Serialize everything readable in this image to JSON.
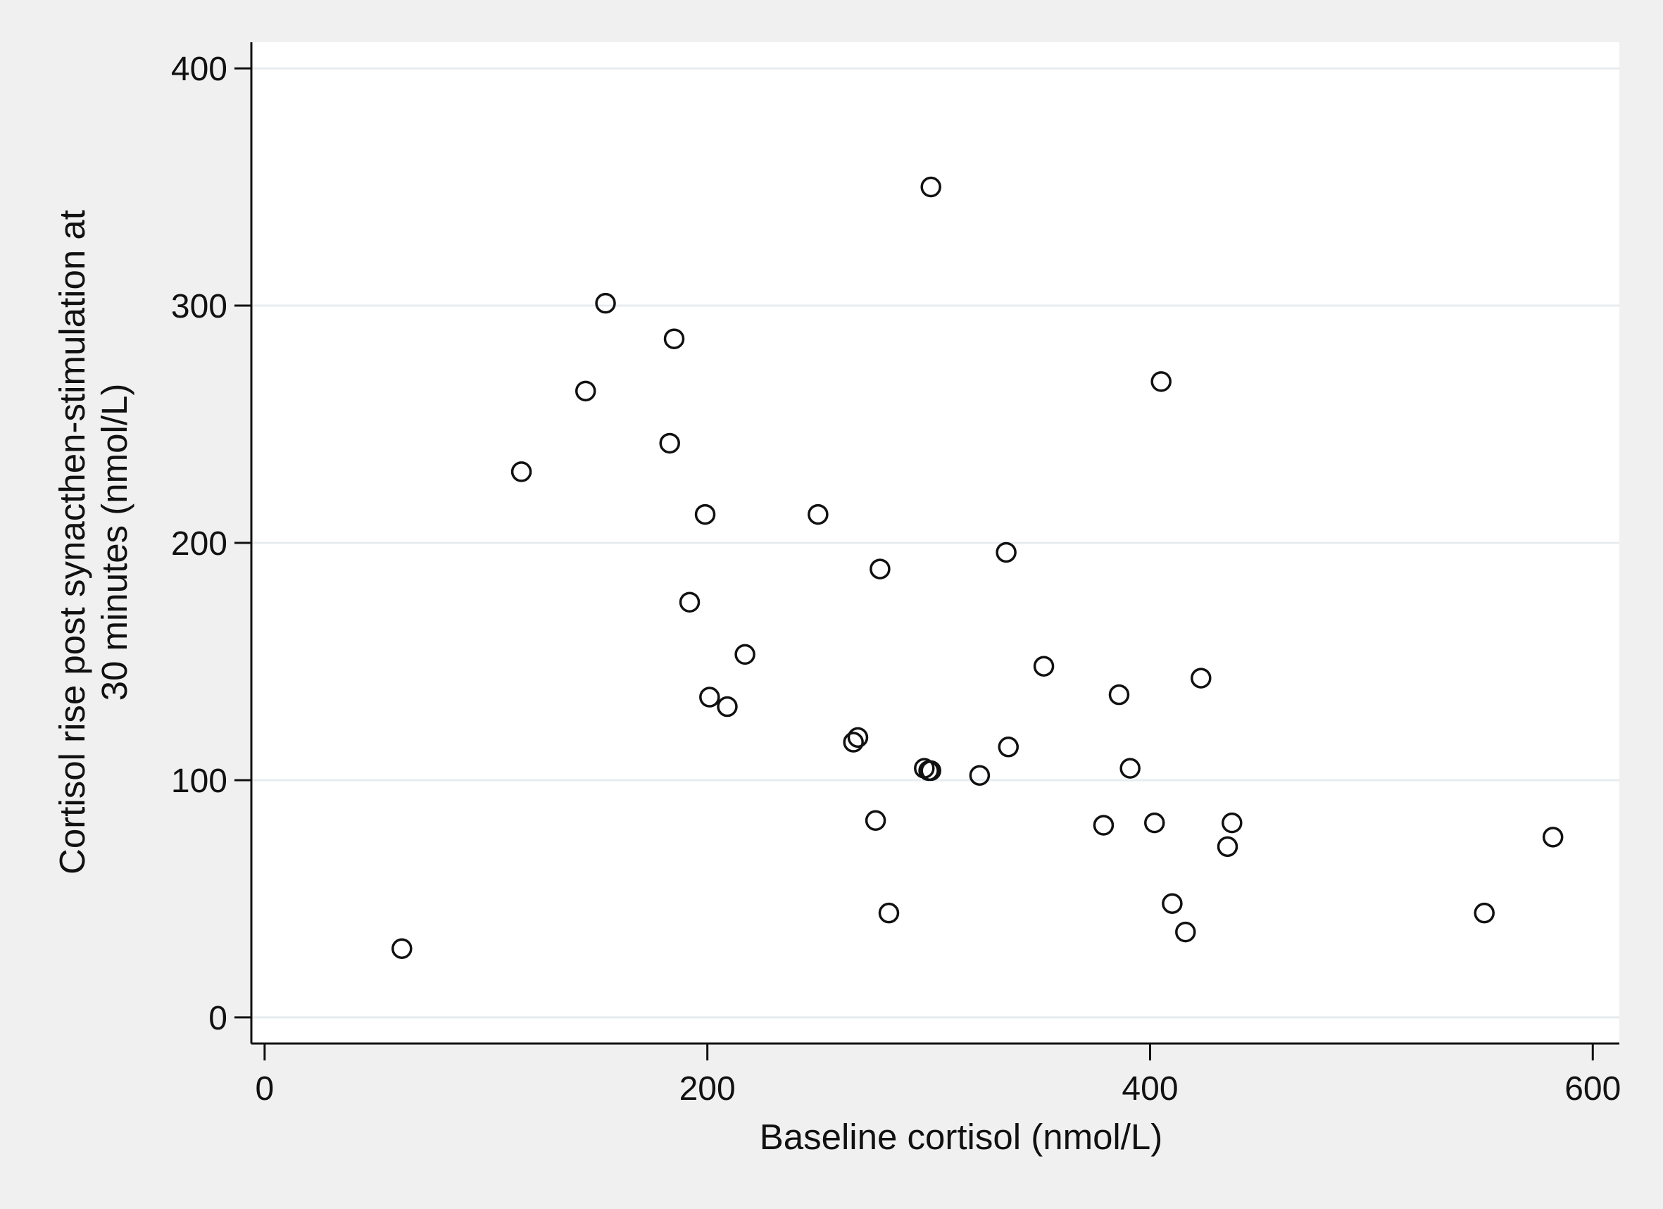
{
  "chart_data": {
    "type": "scatter",
    "title": "",
    "xlabel": "Baseline cortisol (nmol/L)",
    "ylabel_lines": [
      "Cortisol rise post synacthen-stimulation at",
      "30 minutes (nmol/L)"
    ],
    "xlim": [
      -6,
      612
    ],
    "ylim": [
      -11,
      411
    ],
    "xticks": [
      0,
      200,
      400,
      600
    ],
    "yticks": [
      0,
      100,
      200,
      300,
      400
    ],
    "grid": "horizontal",
    "legend": "none",
    "colors": {
      "background": "#f0f0f0",
      "plot_background": "#ffffff",
      "gridline": "#e6ecf0",
      "axis": "#111111",
      "marker": "#111111"
    },
    "points": [
      {
        "x": 62,
        "y": 29
      },
      {
        "x": 116,
        "y": 230
      },
      {
        "x": 145,
        "y": 264
      },
      {
        "x": 154,
        "y": 301
      },
      {
        "x": 183,
        "y": 242
      },
      {
        "x": 185,
        "y": 286
      },
      {
        "x": 192,
        "y": 175
      },
      {
        "x": 199,
        "y": 212
      },
      {
        "x": 201,
        "y": 135
      },
      {
        "x": 209,
        "y": 131
      },
      {
        "x": 217,
        "y": 153
      },
      {
        "x": 250,
        "y": 212
      },
      {
        "x": 266,
        "y": 116
      },
      {
        "x": 268,
        "y": 118
      },
      {
        "x": 276,
        "y": 83
      },
      {
        "x": 278,
        "y": 189
      },
      {
        "x": 282,
        "y": 44
      },
      {
        "x": 298,
        "y": 105
      },
      {
        "x": 300,
        "y": 104
      },
      {
        "x": 301,
        "y": 350
      },
      {
        "x": 301,
        "y": 104
      },
      {
        "x": 323,
        "y": 102
      },
      {
        "x": 335,
        "y": 196
      },
      {
        "x": 336,
        "y": 114
      },
      {
        "x": 352,
        "y": 148
      },
      {
        "x": 379,
        "y": 81
      },
      {
        "x": 386,
        "y": 136
      },
      {
        "x": 391,
        "y": 105
      },
      {
        "x": 402,
        "y": 82
      },
      {
        "x": 405,
        "y": 268
      },
      {
        "x": 410,
        "y": 48
      },
      {
        "x": 416,
        "y": 36
      },
      {
        "x": 423,
        "y": 143
      },
      {
        "x": 435,
        "y": 72
      },
      {
        "x": 437,
        "y": 82
      },
      {
        "x": 551,
        "y": 44
      },
      {
        "x": 582,
        "y": 76
      }
    ]
  }
}
